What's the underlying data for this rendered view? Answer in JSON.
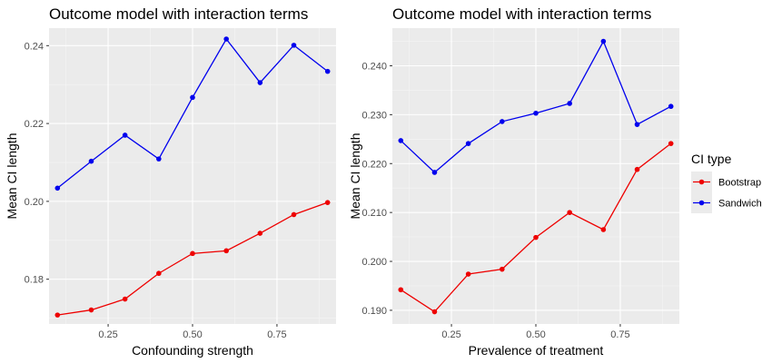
{
  "legend": {
    "title": "CI type",
    "entries": [
      {
        "label": "Bootstrap",
        "color": "#ee0000"
      },
      {
        "label": "Sandwich",
        "color": "#0000ee"
      }
    ]
  },
  "chart_data": [
    {
      "type": "line",
      "title": "Outcome model with interaction terms",
      "xlabel": "Confounding strength",
      "ylabel": "Mean CI length",
      "xlim": [
        0.075,
        0.925
      ],
      "ylim": [
        0.1685,
        0.2445
      ],
      "xticks": [
        0.25,
        0.5,
        0.75
      ],
      "xtick_labels": [
        "0.25",
        "0.50",
        "0.75"
      ],
      "yticks": [
        0.18,
        0.2,
        0.22,
        0.24
      ],
      "ytick_labels": [
        "0.18",
        "0.20",
        "0.22",
        "0.24"
      ],
      "x": [
        0.1,
        0.2,
        0.3,
        0.4,
        0.5,
        0.6,
        0.7,
        0.8,
        0.9
      ],
      "series": [
        {
          "name": "Bootstrap",
          "color": "#ee0000",
          "values": [
            0.1708,
            0.1721,
            0.1749,
            0.1815,
            0.1866,
            0.1873,
            0.1918,
            0.1966,
            0.1997
          ]
        },
        {
          "name": "Sandwich",
          "color": "#0000ee",
          "values": [
            0.2034,
            0.2103,
            0.217,
            0.2109,
            0.2267,
            0.2417,
            0.2305,
            0.2401,
            0.2334
          ]
        }
      ],
      "grid": true,
      "legend": "right"
    },
    {
      "type": "line",
      "title": "Outcome model with interaction terms",
      "xlabel": "Prevalence of treatment",
      "ylabel": "Mean CI length",
      "xlim": [
        0.075,
        0.925
      ],
      "ylim": [
        0.1872,
        0.2477
      ],
      "xticks": [
        0.25,
        0.5,
        0.75
      ],
      "xtick_labels": [
        "0.25",
        "0.50",
        "0.75"
      ],
      "yticks": [
        0.19,
        0.2,
        0.21,
        0.22,
        0.23,
        0.24
      ],
      "ytick_labels": [
        "0.190",
        "0.200",
        "0.210",
        "0.220",
        "0.230",
        "0.240"
      ],
      "x": [
        0.1,
        0.2,
        0.3,
        0.4,
        0.5,
        0.6,
        0.7,
        0.8,
        0.9
      ],
      "series": [
        {
          "name": "Bootstrap",
          "color": "#ee0000",
          "values": [
            0.1942,
            0.1897,
            0.1974,
            0.1984,
            0.2049,
            0.21,
            0.2065,
            0.2188,
            0.2241
          ]
        },
        {
          "name": "Sandwich",
          "color": "#0000ee",
          "values": [
            0.2247,
            0.2182,
            0.2241,
            0.2286,
            0.2303,
            0.2323,
            0.245,
            0.228,
            0.2317
          ]
        }
      ],
      "grid": true,
      "legend": "right"
    }
  ]
}
